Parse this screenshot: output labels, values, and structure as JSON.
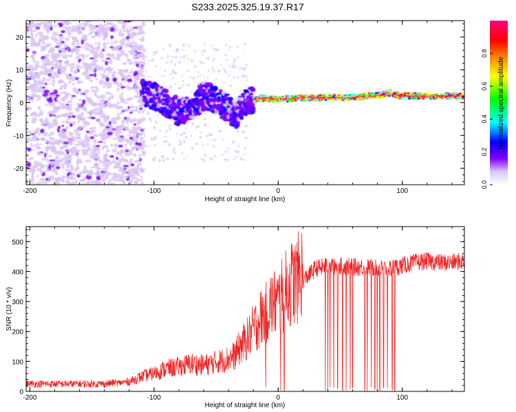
{
  "title": "S233.2025.325.19.37.R17",
  "chart_data": [
    {
      "type": "heatmap",
      "xlabel": "Height of straight line (km)",
      "ylabel": "Frequency (Hz)",
      "xlim": [
        -203,
        150
      ],
      "ylim": [
        -25,
        25
      ],
      "xticks": [
        -200,
        -100,
        0,
        100
      ],
      "yticks": [
        -20,
        -10,
        0,
        10,
        20
      ],
      "signal_trace": {
        "x": [
          -110,
          -100,
          -90,
          -80,
          -70,
          -60,
          -50,
          -40,
          -35,
          -30,
          -25,
          -20,
          -10,
          0,
          20,
          40,
          60,
          70,
          80,
          90,
          100,
          120,
          140,
          150
        ],
        "y": [
          3,
          2,
          0,
          -3,
          -1,
          2,
          1,
          -2,
          -4,
          -2,
          0.5,
          1,
          1.5,
          1,
          1.5,
          1.5,
          1.5,
          2,
          2,
          3,
          2,
          2,
          2,
          2
        ]
      },
      "colorbar": {
        "label": "Normalized spectral amplitude",
        "range": [
          0,
          1
        ],
        "ticks": [
          "0.0",
          "0.2",
          "0.4",
          "0.6",
          "0.8"
        ],
        "colors": [
          "#ffffff",
          "#d9c6f5",
          "#7f00ff",
          "#0000ff",
          "#00ffff",
          "#00ff00",
          "#ffff00",
          "#ff8000",
          "#ff0000",
          "#ff0080"
        ]
      }
    },
    {
      "type": "line",
      "xlabel": "Height of straight line (km)",
      "ylabel": "SNR (10 * v/v)",
      "xlim": [
        -203,
        150
      ],
      "ylim": [
        0,
        550
      ],
      "xticks": [
        -200,
        -100,
        0,
        100
      ],
      "yticks": [
        0,
        100,
        200,
        300,
        400,
        500
      ],
      "color": "#ee2222",
      "series": [
        {
          "name": "SNR",
          "x": [
            -203,
            -190,
            -180,
            -170,
            -160,
            -150,
            -140,
            -130,
            -120,
            -110,
            -100,
            -90,
            -80,
            -70,
            -60,
            -50,
            -40,
            -35,
            -30,
            -25,
            -20,
            -15,
            -10,
            -5,
            0,
            5,
            10,
            15,
            20,
            25,
            30,
            40,
            50,
            60,
            70,
            80,
            90,
            100,
            110,
            120,
            130,
            140,
            150
          ],
          "y": [
            20,
            20,
            20,
            20,
            20,
            20,
            20,
            25,
            30,
            45,
            55,
            70,
            75,
            85,
            80,
            90,
            100,
            110,
            140,
            160,
            190,
            220,
            240,
            270,
            270,
            300,
            330,
            340,
            370,
            390,
            410,
            420,
            420,
            415,
            415,
            410,
            410,
            420,
            430,
            435,
            430,
            430,
            435
          ],
          "dropouts_x": [
            -10,
            2,
            5,
            35,
            38,
            40,
            42,
            45,
            48,
            50,
            52,
            55,
            58,
            60,
            70,
            72,
            75,
            78,
            80,
            82,
            85,
            88,
            90,
            92,
            94
          ]
        }
      ]
    }
  ]
}
